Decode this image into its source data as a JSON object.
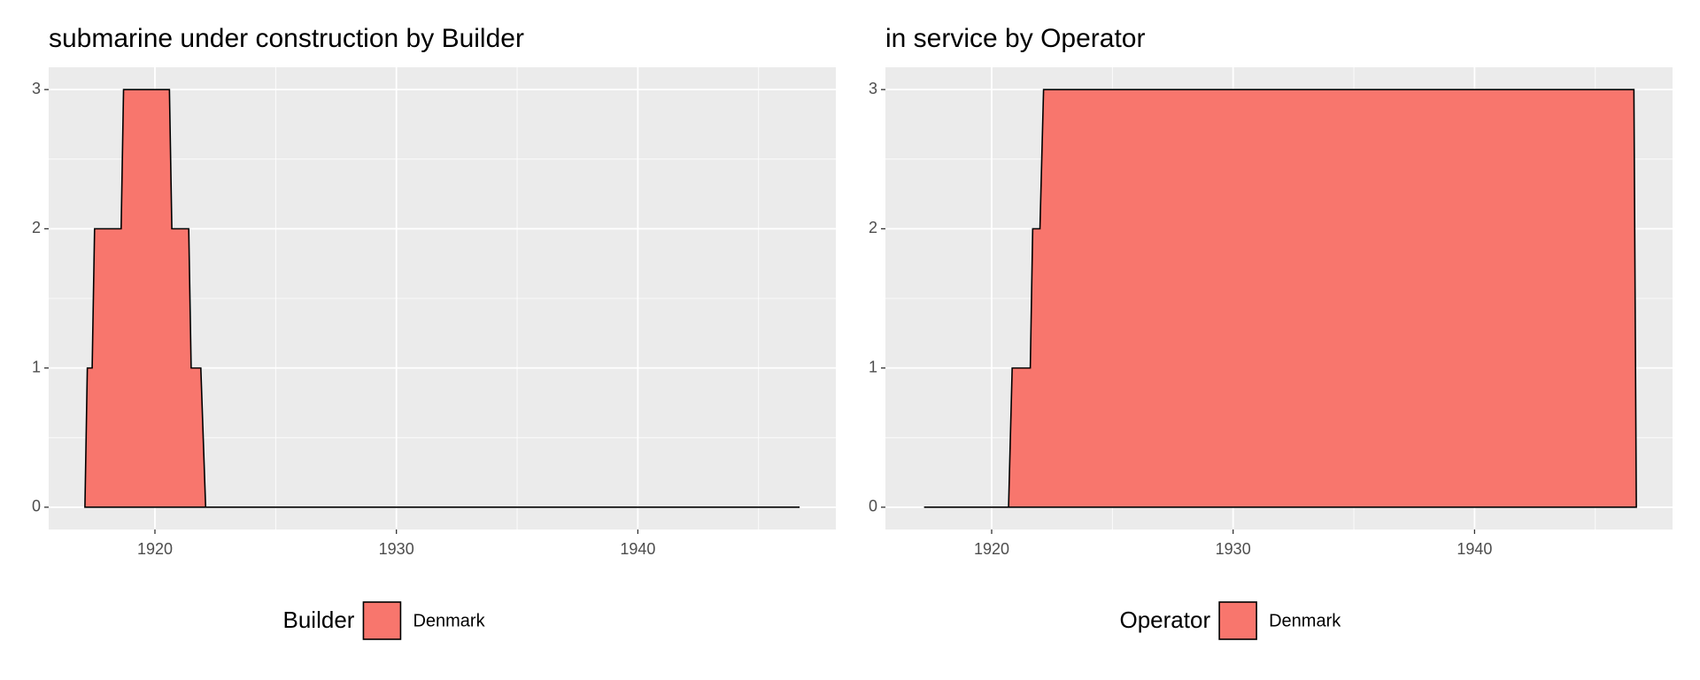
{
  "chart_data": [
    {
      "type": "area",
      "title": "submarine under construction by Builder",
      "x": [
        1917.1,
        1917.2,
        1917.4,
        1917.5,
        1918.6,
        1918.7,
        1920.6,
        1920.7,
        1921.4,
        1921.5,
        1921.9,
        1922.1,
        1946.7
      ],
      "series": [
        {
          "name": "Denmark",
          "color": "#F8766D",
          "values": [
            0,
            1,
            1,
            2,
            2,
            3,
            3,
            2,
            2,
            1,
            1,
            0,
            0
          ]
        }
      ],
      "xlim": [
        1915.6,
        1948.2
      ],
      "ylim": [
        -0.16,
        3.16
      ],
      "xticks": [
        1920,
        1930,
        1940
      ],
      "yticks": [
        0,
        1,
        2,
        3
      ],
      "minor_xticks": [
        1915,
        1925,
        1935,
        1945
      ],
      "minor_yticks": [
        0.5,
        1.5,
        2.5
      ],
      "grid": true,
      "legend": "bottom",
      "legend_title": "Builder"
    },
    {
      "type": "area",
      "title": "in service by Operator",
      "x": [
        1917.2,
        1920.7,
        1920.85,
        1921.6,
        1921.7,
        1922.0,
        1922.15,
        1946.6,
        1946.7
      ],
      "series": [
        {
          "name": "Denmark",
          "color": "#F8766D",
          "values": [
            0,
            0,
            1,
            1,
            2,
            2,
            3,
            3,
            0
          ]
        }
      ],
      "xlim": [
        1915.6,
        1948.2
      ],
      "ylim": [
        -0.16,
        3.16
      ],
      "xticks": [
        1920,
        1930,
        1940
      ],
      "yticks": [
        0,
        1,
        2,
        3
      ],
      "minor_xticks": [
        1915,
        1925,
        1935,
        1945
      ],
      "minor_yticks": [
        0.5,
        1.5,
        2.5
      ],
      "grid": true,
      "legend": "bottom",
      "legend_title": "Operator"
    }
  ]
}
